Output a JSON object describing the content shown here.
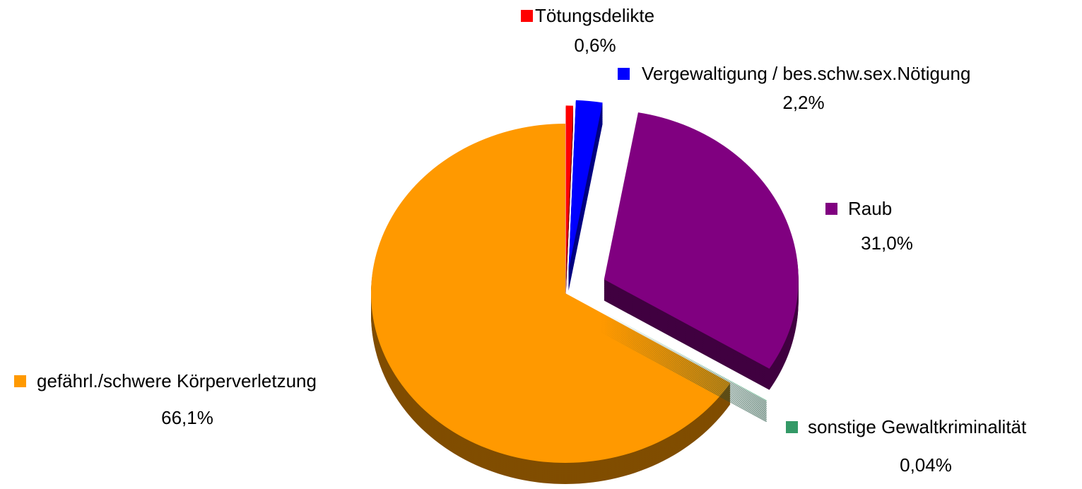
{
  "chart_data": {
    "type": "pie",
    "categories": [
      "Tötungsdelikte",
      "Vergewaltigung / bes.schw.sex.Nötigung",
      "Raub",
      "sonstige Gewaltkriminalität",
      "gefährl./schwere Körperverletzung"
    ],
    "values": [
      0.6,
      2.2,
      31.0,
      0.04,
      66.1
    ],
    "value_labels": [
      "0,6%",
      "2,2%",
      "31,0%",
      "0,04%",
      "66,1%"
    ],
    "colors": [
      "#ff0000",
      "#0000ff",
      "#800080",
      "#339966",
      "#ff9900"
    ]
  }
}
